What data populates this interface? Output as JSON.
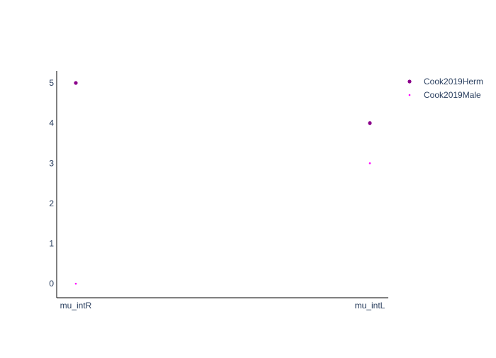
{
  "chart_data": {
    "type": "scatter",
    "categories": [
      "mu_intR",
      "mu_intL"
    ],
    "ylim": [
      -0.35,
      5.3
    ],
    "yticks": [
      0,
      1,
      2,
      3,
      4,
      5
    ],
    "xlabel": "",
    "ylabel": "",
    "grid": false,
    "legend_position": "top-right",
    "series": [
      {
        "name": "Cook2019Herm",
        "values": [
          5,
          4
        ],
        "color": "#8b008b",
        "marker": "circle-large"
      },
      {
        "name": "Cook2019Male",
        "values": [
          0,
          3
        ],
        "color": "#ff00ff",
        "marker": "circle-small"
      }
    ]
  }
}
